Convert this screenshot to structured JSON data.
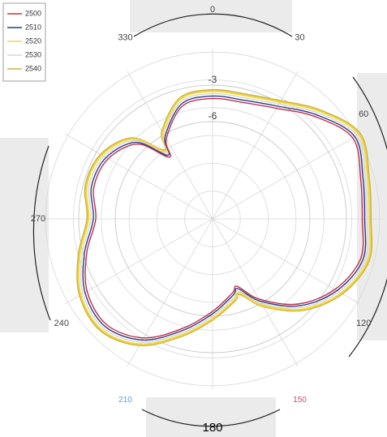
{
  "chart_data": {
    "type": "polar",
    "theta": [
      0,
      15,
      30,
      45,
      60,
      75,
      90,
      105,
      120,
      135,
      150,
      160,
      165,
      180,
      195,
      210,
      225,
      240,
      255,
      270,
      285,
      300,
      315,
      325,
      330,
      345
    ],
    "series": [
      {
        "name": "2500",
        "color": "#c0304a",
        "values": [
          -4.1,
          -4.1,
          -3.5,
          -2.1,
          -0.7,
          -1.4,
          -1.7,
          -1.4,
          -2.4,
          -4.1,
          -6.4,
          -8.1,
          -7.7,
          -6.4,
          -4.7,
          -2.7,
          -1.7,
          -2.1,
          -3.3,
          -4.4,
          -3.9,
          -4.1,
          -5.3,
          -7.8,
          -6.4,
          -4.4
        ]
      },
      {
        "name": "2510",
        "color": "#2b3a8c",
        "values": [
          -3.9,
          -3.9,
          -3.3,
          -1.9,
          -0.5,
          -1.2,
          -1.5,
          -1.2,
          -2.2,
          -3.9,
          -6.2,
          -7.9,
          -7.5,
          -6.2,
          -4.5,
          -2.5,
          -1.5,
          -1.9,
          -3.1,
          -4.2,
          -3.7,
          -3.9,
          -5.1,
          -7.6,
          -6.2,
          -4.2
        ]
      },
      {
        "name": "2520",
        "color": "#f2d640",
        "values": [
          -3.5,
          -3.5,
          -2.9,
          -1.5,
          -0.1,
          -0.8,
          -1.1,
          -0.8,
          -1.8,
          -3.5,
          -5.8,
          -7.5,
          -7.1,
          -5.8,
          -4.1,
          -2.1,
          -1.1,
          -1.5,
          -2.7,
          -3.8,
          -3.3,
          -3.5,
          -4.7,
          -7.2,
          -5.8,
          -3.8
        ]
      },
      {
        "name": "2530",
        "color": "#d8d8c8",
        "values": [
          -3.7,
          -3.7,
          -3.1,
          -1.7,
          -0.3,
          -1.0,
          -1.3,
          -1.0,
          -2.0,
          -3.7,
          -6.0,
          -7.7,
          -7.3,
          -6.0,
          -4.3,
          -2.3,
          -1.3,
          -1.7,
          -2.9,
          -4.0,
          -3.5,
          -3.7,
          -4.9,
          -7.4,
          -6.0,
          -4.0
        ]
      },
      {
        "name": "2540",
        "color": "#c8b44a",
        "values": [
          -3.4,
          -3.4,
          -2.8,
          -1.4,
          0.0,
          -0.7,
          -1.0,
          -0.7,
          -1.7,
          -3.4,
          -5.7,
          -7.4,
          -7.0,
          -5.7,
          -4.0,
          -2.0,
          -1.0,
          -1.4,
          -2.6,
          -3.7,
          -3.2,
          -3.4,
          -4.6,
          -7.1,
          -5.7,
          -3.7
        ]
      }
    ],
    "rlim": [
      -14,
      0
    ],
    "rticks": [
      -3,
      -6
    ],
    "thetaticks": [
      0,
      30,
      60,
      120,
      150,
      180,
      210,
      240,
      270,
      330
    ],
    "thetatick_colors": {
      "150": "#c05070",
      "210": "#5aa0d8"
    },
    "direction": "clockwise",
    "zero_location": "top",
    "legend": "upper left"
  }
}
